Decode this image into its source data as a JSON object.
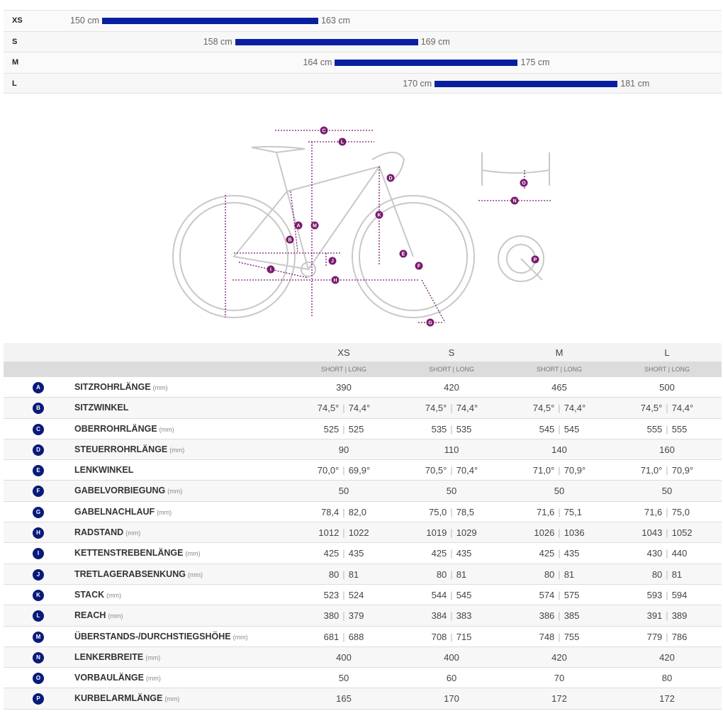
{
  "size_chart": {
    "bar_color": "#0a1fa0",
    "rows": [
      {
        "size": "XS",
        "min": 150,
        "max": 163,
        "min_label": "150 cm",
        "max_label": "163 cm"
      },
      {
        "size": "S",
        "min": 158,
        "max": 169,
        "min_label": "158 cm",
        "max_label": "169 cm"
      },
      {
        "size": "M",
        "min": 164,
        "max": 175,
        "min_label": "164 cm",
        "max_label": "175 cm"
      },
      {
        "size": "L",
        "min": 170,
        "max": 181,
        "min_label": "170 cm",
        "max_label": "181 cm"
      }
    ]
  },
  "diagram": {
    "labels": [
      "A",
      "B",
      "C",
      "D",
      "E",
      "F",
      "G",
      "H",
      "I",
      "J",
      "K",
      "L",
      "M",
      "N",
      "O",
      "P"
    ]
  },
  "table": {
    "sizes": [
      "XS",
      "S",
      "M",
      "L"
    ],
    "subheader": "SHORT | LONG",
    "unit": "(mm)",
    "rows": [
      {
        "letter": "A",
        "name": "SITZROHRLÄNGE",
        "unit": true,
        "values": [
          [
            "390"
          ],
          [
            "420"
          ],
          [
            "465"
          ],
          [
            "500"
          ]
        ]
      },
      {
        "letter": "B",
        "name": "SITZWINKEL",
        "unit": false,
        "values": [
          [
            "74,5°",
            "74,4°"
          ],
          [
            "74,5°",
            "74,4°"
          ],
          [
            "74,5°",
            "74,4°"
          ],
          [
            "74,5°",
            "74,4°"
          ]
        ]
      },
      {
        "letter": "C",
        "name": "OBERROHRLÄNGE",
        "unit": true,
        "values": [
          [
            "525",
            "525"
          ],
          [
            "535",
            "535"
          ],
          [
            "545",
            "545"
          ],
          [
            "555",
            "555"
          ]
        ]
      },
      {
        "letter": "D",
        "name": "STEUERROHRLÄNGE",
        "unit": true,
        "values": [
          [
            "90"
          ],
          [
            "110"
          ],
          [
            "140"
          ],
          [
            "160"
          ]
        ]
      },
      {
        "letter": "E",
        "name": "LENKWINKEL",
        "unit": false,
        "values": [
          [
            "70,0°",
            "69,9°"
          ],
          [
            "70,5°",
            "70,4°"
          ],
          [
            "71,0°",
            "70,9°"
          ],
          [
            "71,0°",
            "70,9°"
          ]
        ]
      },
      {
        "letter": "F",
        "name": "GABELVORBIEGUNG",
        "unit": true,
        "values": [
          [
            "50"
          ],
          [
            "50"
          ],
          [
            "50"
          ],
          [
            "50"
          ]
        ]
      },
      {
        "letter": "G",
        "name": "GABELNACHLAUF",
        "unit": true,
        "values": [
          [
            "78,4",
            "82,0"
          ],
          [
            "75,0",
            "78,5"
          ],
          [
            "71,6",
            "75,1"
          ],
          [
            "71,6",
            "75,0"
          ]
        ]
      },
      {
        "letter": "H",
        "name": "RADSTAND",
        "unit": true,
        "values": [
          [
            "1012",
            "1022"
          ],
          [
            "1019",
            "1029"
          ],
          [
            "1026",
            "1036"
          ],
          [
            "1043",
            "1052"
          ]
        ]
      },
      {
        "letter": "I",
        "name": "KETTENSTREBENLÄNGE",
        "unit": true,
        "values": [
          [
            "425",
            "435"
          ],
          [
            "425",
            "435"
          ],
          [
            "425",
            "435"
          ],
          [
            "430",
            "440"
          ]
        ]
      },
      {
        "letter": "J",
        "name": "TRETLAGERABSENKUNG",
        "unit": true,
        "values": [
          [
            "80",
            "81"
          ],
          [
            "80",
            "81"
          ],
          [
            "80",
            "81"
          ],
          [
            "80",
            "81"
          ]
        ]
      },
      {
        "letter": "K",
        "name": "STACK",
        "unit": true,
        "values": [
          [
            "523",
            "524"
          ],
          [
            "544",
            "545"
          ],
          [
            "574",
            "575"
          ],
          [
            "593",
            "594"
          ]
        ]
      },
      {
        "letter": "L",
        "name": "REACH",
        "unit": true,
        "values": [
          [
            "380",
            "379"
          ],
          [
            "384",
            "383"
          ],
          [
            "386",
            "385"
          ],
          [
            "391",
            "389"
          ]
        ]
      },
      {
        "letter": "M",
        "name": "ÜBERSTANDS-/DURCHSTIEGSHÖHE",
        "unit": true,
        "values": [
          [
            "681",
            "688"
          ],
          [
            "708",
            "715"
          ],
          [
            "748",
            "755"
          ],
          [
            "779",
            "786"
          ]
        ]
      },
      {
        "letter": "N",
        "name": "LENKERBREITE",
        "unit": true,
        "values": [
          [
            "400"
          ],
          [
            "400"
          ],
          [
            "420"
          ],
          [
            "420"
          ]
        ]
      },
      {
        "letter": "O",
        "name": "VORBAULÄNGE",
        "unit": true,
        "values": [
          [
            "50"
          ],
          [
            "60"
          ],
          [
            "70"
          ],
          [
            "80"
          ]
        ]
      },
      {
        "letter": "P",
        "name": "KURBELARMLÄNGE",
        "unit": true,
        "values": [
          [
            "165"
          ],
          [
            "170"
          ],
          [
            "172"
          ],
          [
            "172"
          ]
        ]
      }
    ]
  }
}
